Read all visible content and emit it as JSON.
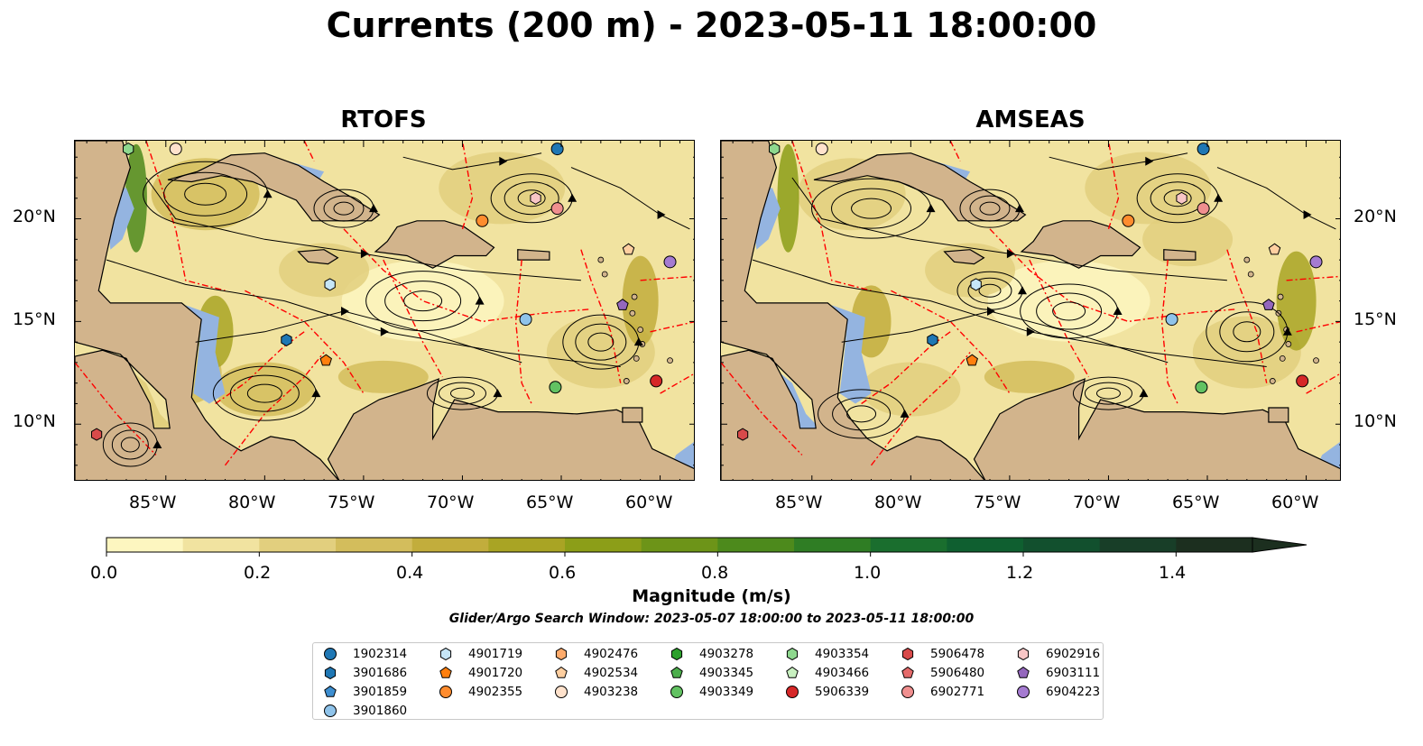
{
  "title": "Currents (200 m) - 2023-05-11 18:00:00",
  "panels": [
    {
      "name": "RTOFS"
    },
    {
      "name": "AMSEAS"
    }
  ],
  "lat_labels": [
    "20°N",
    "15°N",
    "10°N"
  ],
  "lon_labels": [
    "85°W",
    "80°W",
    "75°W",
    "70°W",
    "65°W",
    "60°W"
  ],
  "colorbar": {
    "label": "Magnitude (m/s)",
    "ticks": [
      "0.0",
      "0.2",
      "0.4",
      "0.6",
      "0.8",
      "1.0",
      "1.2",
      "1.4"
    ],
    "min": 0.0,
    "max": 1.5,
    "step": 0.1,
    "extend": "max",
    "colors": [
      "#fdf6c0",
      "#f1e3a0",
      "#e2cf7e",
      "#d3bd5c",
      "#c2ad3c",
      "#a9a424",
      "#8c9e18",
      "#6d9418",
      "#4d8a1c",
      "#2f7d24",
      "#1a6e2e",
      "#0f5f30",
      "#12502e",
      "#183e28",
      "#1c2f1f"
    ]
  },
  "search_window": "Glider/Argo Search Window: 2023-05-07 18:00:00 to 2023-05-11 18:00:00",
  "colors": {
    "land": "#d2b48c",
    "shallow_water": "#94b4e0",
    "boundary": "#ff0000",
    "streamline": "#000000"
  },
  "legend": [
    {
      "id": "1902314",
      "marker": "circle",
      "color": "#1f77b4"
    },
    {
      "id": "3901686",
      "marker": "hexagon",
      "color": "#1f77b4"
    },
    {
      "id": "3901859",
      "marker": "pentagon",
      "color": "#3d8ed0"
    },
    {
      "id": "3901860",
      "marker": "circle",
      "color": "#8fc3ea"
    },
    {
      "id": "4901719",
      "marker": "hexagon",
      "color": "#c6e6f7"
    },
    {
      "id": "4901720",
      "marker": "pentagon",
      "color": "#ff7f0e"
    },
    {
      "id": "4902355",
      "marker": "circle",
      "color": "#ff8c2e"
    },
    {
      "id": "4902476",
      "marker": "hexagon",
      "color": "#ffab6b"
    },
    {
      "id": "4902534",
      "marker": "pentagon",
      "color": "#ffcfa0"
    },
    {
      "id": "4903238",
      "marker": "circle",
      "color": "#ffe2cc"
    },
    {
      "id": "4903278",
      "marker": "hexagon",
      "color": "#2ca02c"
    },
    {
      "id": "4903345",
      "marker": "pentagon",
      "color": "#4cae4c"
    },
    {
      "id": "4903349",
      "marker": "circle",
      "color": "#62c262"
    },
    {
      "id": "4903354",
      "marker": "hexagon",
      "color": "#8ed88e"
    },
    {
      "id": "4903466",
      "marker": "pentagon",
      "color": "#c8f0c0"
    },
    {
      "id": "5906339",
      "marker": "circle",
      "color": "#d62728"
    },
    {
      "id": "5906478",
      "marker": "hexagon",
      "color": "#d84a4a"
    },
    {
      "id": "5906480",
      "marker": "pentagon",
      "color": "#e56b6b"
    },
    {
      "id": "6902771",
      "marker": "circle",
      "color": "#f08f8f"
    },
    {
      "id": "6902916",
      "marker": "hexagon",
      "color": "#f8c6c6"
    },
    {
      "id": "6903111",
      "marker": "pentagon",
      "color": "#9467bd"
    },
    {
      "id": "6904223",
      "marker": "circle",
      "color": "#a57bd1"
    }
  ],
  "floats": [
    {
      "id": "1902314",
      "lon": -65.2,
      "lat": 23.4
    },
    {
      "id": "3901686",
      "lon": -78.9,
      "lat": 14.1
    },
    {
      "id": "3901860",
      "lon": -66.8,
      "lat": 15.1
    },
    {
      "id": "4901719",
      "lon": -76.7,
      "lat": 16.8
    },
    {
      "id": "4901720",
      "lon": -76.9,
      "lat": 13.1
    },
    {
      "id": "4902355",
      "lon": -69.0,
      "lat": 19.9
    },
    {
      "id": "4902534",
      "lon": -61.6,
      "lat": 18.5
    },
    {
      "id": "4903238",
      "lon": -84.5,
      "lat": 23.4
    },
    {
      "id": "4903349",
      "lon": -65.3,
      "lat": 11.8
    },
    {
      "id": "4903354",
      "lon": -86.9,
      "lat": 23.4
    },
    {
      "id": "5906339",
      "lon": -60.2,
      "lat": 12.1
    },
    {
      "id": "5906478",
      "lon": -88.5,
      "lat": 9.5
    },
    {
      "id": "6902771",
      "lon": -65.2,
      "lat": 20.5
    },
    {
      "id": "6902916",
      "lon": -66.3,
      "lat": 21.0
    },
    {
      "id": "6903111",
      "lon": -61.9,
      "lat": 15.8
    },
    {
      "id": "6904223",
      "lon": -59.5,
      "lat": 17.9
    }
  ]
}
